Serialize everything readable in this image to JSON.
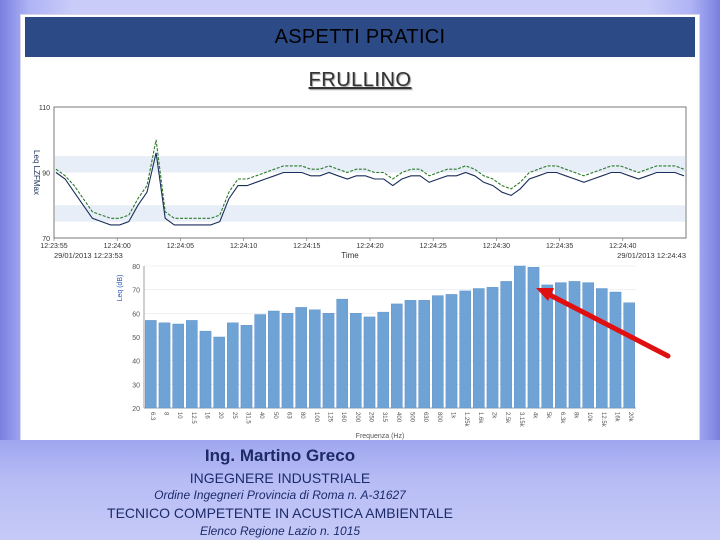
{
  "slide": {
    "title": "ASPETTI PRATICI",
    "subtitle": "FRULLINO"
  },
  "footer": {
    "name": "Ing. Martino Greco",
    "role": "INGEGNERE INDUSTRIALE",
    "order": "Ordine Ingegneri Provincia di Roma n. A-31627",
    "competence": "TECNICO COMPETENTE IN ACUSTICA AMBIENTALE",
    "registry": "Elenco Regione Lazio n. 1015"
  },
  "colors": {
    "title_bar": "#2b4a86",
    "trace_leq": "#1a2e5a",
    "trace_lmax": "#2a7a2a",
    "bar": "#6fa3d6",
    "arrow": "#e01010"
  },
  "chart_data": [
    {
      "type": "line",
      "ylabel": "Leq   LZFMax",
      "xlabel": "Time",
      "ylim": [
        70,
        110
      ],
      "y_ticks": [
        "110",
        "90",
        "70"
      ],
      "x_ticks": [
        "12:23:55",
        "12:24:00",
        "12:24:05",
        "12:24:10",
        "12:24:15",
        "12:24:20",
        "12:24:25",
        "12:24:30",
        "12:24:35",
        "12:24:40"
      ],
      "start_label": "29/01/2013 12:23:53",
      "end_label": "29/01/2013 12:24:43",
      "series": [
        {
          "values": [
            90,
            88,
            84,
            80,
            76,
            75,
            74,
            74,
            75,
            80,
            84,
            96,
            76,
            74,
            74,
            74,
            74,
            74,
            75,
            82,
            86,
            86,
            87,
            88,
            89,
            90,
            90,
            90,
            89,
            89,
            90,
            89,
            88,
            89,
            89,
            88,
            88,
            86,
            88,
            89,
            89,
            87,
            88,
            89,
            89,
            90,
            89,
            87,
            86,
            84,
            83,
            85,
            88,
            89,
            90,
            90,
            89,
            88,
            87,
            88,
            89,
            90,
            90,
            89,
            88,
            89,
            90,
            90,
            90,
            89
          ]
        },
        {
          "values": [
            91,
            89,
            86,
            82,
            78,
            77,
            76,
            76,
            77,
            82,
            86,
            100,
            78,
            76,
            76,
            76,
            76,
            76,
            77,
            84,
            88,
            88,
            89,
            90,
            91,
            92,
            92,
            92,
            91,
            91,
            92,
            91,
            90,
            91,
            91,
            90,
            90,
            88,
            90,
            91,
            91,
            89,
            90,
            91,
            91,
            92,
            91,
            89,
            88,
            86,
            85,
            87,
            90,
            91,
            92,
            92,
            91,
            90,
            89,
            90,
            91,
            92,
            92,
            91,
            90,
            91,
            92,
            92,
            92,
            91
          ]
        }
      ]
    },
    {
      "type": "bar",
      "ylabel": "Leq (dB)",
      "xlabel": "Frequenza (Hz)",
      "ylim": [
        20,
        80
      ],
      "y_ticks": [
        "80",
        "70",
        "60",
        "50",
        "40",
        "30",
        "20"
      ],
      "categories": [
        "6.3",
        "8",
        "10",
        "12.5",
        "16",
        "20",
        "25",
        "31.5",
        "40",
        "50",
        "63",
        "80",
        "100",
        "125",
        "160",
        "200",
        "250",
        "315",
        "400",
        "500",
        "630",
        "800",
        "1k",
        "1.25k",
        "1.6k",
        "2k",
        "2.5k",
        "3.15k",
        "4k",
        "5k",
        "6.3k",
        "8k",
        "10k",
        "12.5k",
        "16k",
        "20k"
      ],
      "values": [
        57,
        56,
        55.5,
        57,
        52.5,
        50,
        56,
        55,
        59.5,
        61,
        60,
        62.5,
        61.5,
        60,
        66,
        60,
        58.5,
        60.5,
        64,
        65.5,
        65.5,
        67.5,
        68,
        69.5,
        70.5,
        71,
        73.5,
        80,
        79.5,
        72,
        73,
        73.5,
        73,
        70.5,
        69,
        64.5
      ]
    }
  ]
}
